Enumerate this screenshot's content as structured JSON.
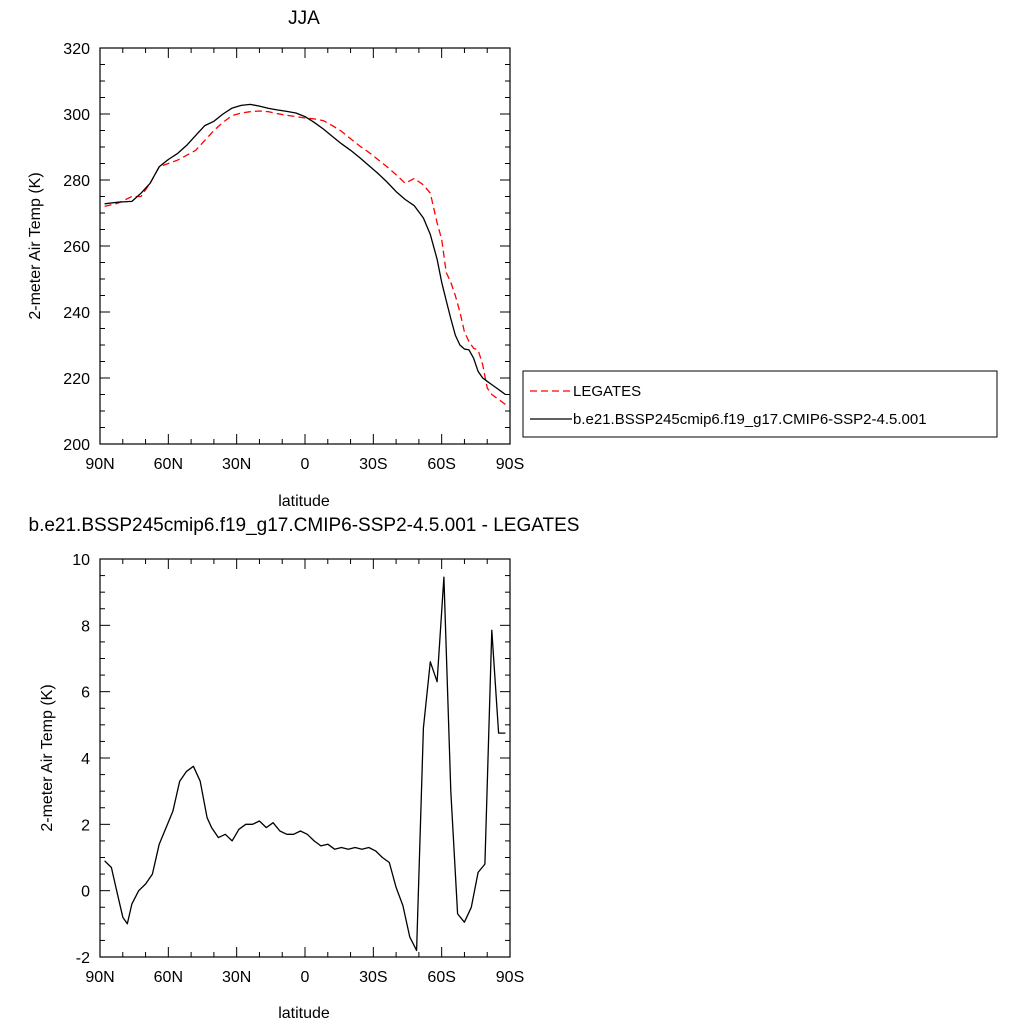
{
  "chart_data": [
    {
      "type": "line",
      "title": "JJA",
      "xlabel": "latitude",
      "ylabel": "2-meter Air Temp (K)",
      "xlim": [
        -90,
        90
      ],
      "ylim": [
        200,
        320
      ],
      "x_ticks": [
        -90,
        -60,
        -30,
        0,
        30,
        60,
        90
      ],
      "x_tick_labels": [
        "90N",
        "60N",
        "30N",
        "0",
        "30S",
        "60S",
        "90S"
      ],
      "y_ticks": [
        200,
        220,
        240,
        260,
        280,
        300,
        320
      ],
      "y_tick_labels": [
        "200",
        "220",
        "240",
        "260",
        "280",
        "300",
        "320"
      ],
      "grid": false,
      "legend_position": "right, outside",
      "colors": {
        "legates": "#ff0000",
        "model": "#000000"
      },
      "series": [
        {
          "name": "LEGATES",
          "style": "dashed",
          "color": "#ff0000",
          "x": [
            -88,
            -82,
            -76,
            -72,
            -68,
            -64,
            -60,
            -56,
            -52,
            -48,
            -44,
            -40,
            -36,
            -32,
            -28,
            -24,
            -20,
            -16,
            -12,
            -8,
            -4,
            0,
            4,
            8,
            12,
            16,
            20,
            24,
            28,
            32,
            36,
            40,
            44,
            48,
            52,
            55,
            56,
            58,
            60,
            62,
            64,
            66,
            68,
            70,
            72,
            74,
            76,
            78,
            80,
            82,
            84,
            86,
            88
          ],
          "y": [
            272,
            273,
            275,
            275,
            279,
            284,
            285,
            286,
            287.5,
            289,
            292,
            295,
            297.5,
            299.5,
            300.3,
            300.7,
            300.9,
            300.7,
            300.1,
            299.6,
            299.2,
            298.8,
            298.5,
            298,
            296.5,
            294.8,
            292.5,
            290.3,
            288.4,
            286.2,
            284,
            281.6,
            279,
            280.5,
            278.5,
            276,
            273,
            267,
            262,
            252,
            249,
            245,
            240,
            234,
            231,
            229,
            228.5,
            224,
            217,
            215,
            214,
            213,
            212
          ]
        },
        {
          "name": "b.e21.BSSP245cmip6.f19_g17.CMIP6-SSP2-4.5.001",
          "style": "solid",
          "color": "#000000",
          "x": [
            -88,
            -82,
            -76,
            -72,
            -68,
            -64,
            -60,
            -56,
            -52,
            -48,
            -44,
            -40,
            -36,
            -32,
            -28,
            -24,
            -20,
            -16,
            -12,
            -8,
            -4,
            0,
            4,
            8,
            12,
            16,
            20,
            24,
            28,
            32,
            36,
            40,
            44,
            48,
            52,
            55,
            58,
            60,
            62,
            64,
            66,
            68,
            70,
            72,
            74,
            76,
            78,
            80,
            82,
            84,
            86,
            88
          ],
          "y": [
            272.8,
            273.3,
            273.5,
            276,
            279,
            284,
            286.2,
            288,
            290.5,
            293.5,
            296.5,
            297.8,
            300,
            301.8,
            302.6,
            302.9,
            302.4,
            301.7,
            301.2,
            300.8,
            300.3,
            299.2,
            297.5,
            295.5,
            293.2,
            291,
            289,
            286.8,
            284.4,
            282,
            279.4,
            276.5,
            274.1,
            272.2,
            268.5,
            263.5,
            256,
            249,
            243.5,
            238,
            233,
            230,
            228.8,
            228.5,
            226,
            222,
            220,
            219,
            218,
            217,
            216,
            215
          ]
        }
      ]
    },
    {
      "type": "line",
      "title": "b.e21.BSSP245cmip6.f19_g17.CMIP6-SSP2-4.5.001 - LEGATES",
      "xlabel": "latitude",
      "ylabel": "2-meter Air Temp (K)",
      "xlim": [
        -90,
        90
      ],
      "ylim": [
        -2,
        10
      ],
      "x_ticks": [
        -90,
        -60,
        -30,
        0,
        30,
        60,
        90
      ],
      "x_tick_labels": [
        "90N",
        "60N",
        "30N",
        "0",
        "30S",
        "60S",
        "90S"
      ],
      "y_ticks": [
        -2,
        0,
        2,
        4,
        6,
        8,
        10
      ],
      "y_tick_labels": [
        "-2",
        "0",
        "2",
        "4",
        "6",
        "8",
        "10"
      ],
      "grid": false,
      "series": [
        {
          "color": "#000000",
          "style": "solid",
          "x": [
            -88,
            -85,
            -83,
            -80,
            -78,
            -76,
            -73,
            -70,
            -67,
            -64,
            -61,
            -58,
            -55,
            -52,
            -49,
            -46,
            -43,
            -41,
            -38,
            -35,
            -32,
            -29,
            -26,
            -23,
            -20,
            -17,
            -14,
            -11,
            -8,
            -5,
            -2,
            1,
            4,
            7,
            10,
            13,
            16,
            19,
            22,
            25,
            28,
            31,
            34,
            37,
            40,
            43,
            46,
            49,
            52,
            55,
            58,
            61,
            64,
            67,
            70,
            73,
            76,
            79,
            82,
            85,
            88
          ],
          "y": [
            0.9,
            0.7,
            0.1,
            -0.8,
            -1.0,
            -0.4,
            0.0,
            0.2,
            0.5,
            1.4,
            1.9,
            2.4,
            3.3,
            3.6,
            3.75,
            3.3,
            2.2,
            1.9,
            1.6,
            1.7,
            1.5,
            1.85,
            2.0,
            2.0,
            2.1,
            1.9,
            2.05,
            1.8,
            1.7,
            1.7,
            1.8,
            1.7,
            1.5,
            1.35,
            1.4,
            1.25,
            1.3,
            1.25,
            1.3,
            1.25,
            1.3,
            1.2,
            1.0,
            0.85,
            0.1,
            -0.45,
            -1.4,
            -1.8,
            4.9,
            6.9,
            6.3,
            9.45,
            3.0,
            -0.7,
            -0.95,
            -0.5,
            0.55,
            0.8,
            7.85,
            4.75,
            4.75
          ]
        }
      ]
    }
  ]
}
